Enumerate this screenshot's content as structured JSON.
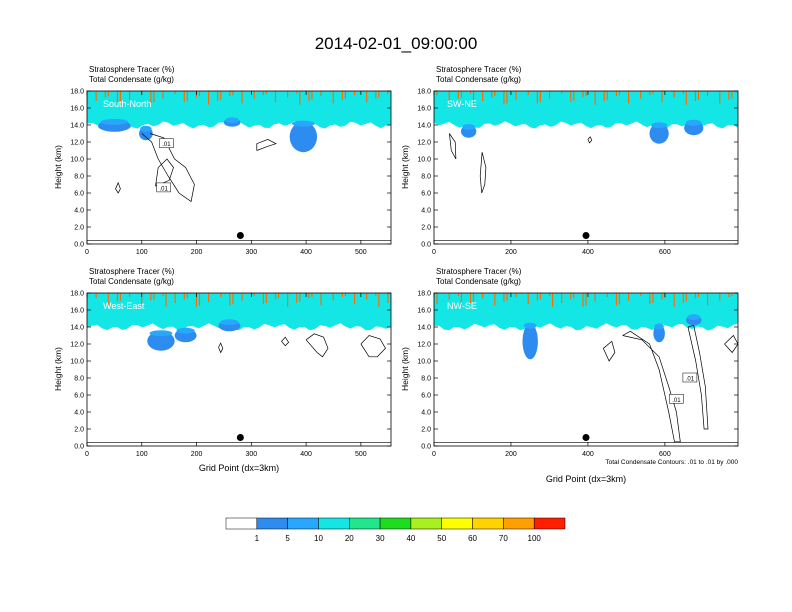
{
  "title": "2014-02-01_09:00:00",
  "panel_header": {
    "line1": "Stratosphere Tracer   (%)",
    "line2": "Total Condensate   (g/kg)"
  },
  "ylabel": "Height (km)",
  "xlabel": "Grid Point (dx=3km)",
  "contour_note": "Total Condensate Contours: .01 to .01 by .000",
  "contour_label": ".01",
  "colors": {
    "bands": [
      "#ffffff",
      "#2e8cf0",
      "#28a7ff",
      "#14e6e6",
      "#20e68c",
      "#1edc1e",
      "#a8f01e",
      "#ffff00",
      "#ffd200",
      "#ffa000",
      "#ff6a00",
      "#ff1e00"
    ],
    "outline": "#000000"
  },
  "colorbar": {
    "labels": [
      "1",
      "5",
      "10",
      "20",
      "30",
      "40",
      "50",
      "60",
      "70",
      "100"
    ]
  },
  "chart_data": [
    {
      "type": "heatmap",
      "label": "South-North",
      "ylim": [
        0,
        18
      ],
      "yticks": [
        "0.0",
        "2.0",
        "4.0",
        "6.0",
        "8.0",
        "10.0",
        "12.0",
        "14.0",
        "16.0",
        "18.0"
      ],
      "xlim": [
        0,
        555
      ],
      "xticks": [
        "0",
        "100",
        "200",
        "300",
        "400",
        "500"
      ],
      "marker_x": 280,
      "blobs": [
        [
          20,
          80,
          13.2,
          14.6
        ],
        [
          95,
          120,
          12.2,
          13.8
        ],
        [
          250,
          280,
          13.8,
          14.8
        ],
        [
          370,
          420,
          10.8,
          14.4
        ]
      ],
      "contours": [
        [
          [
            100,
            13
          ],
          [
            118,
            12
          ],
          [
            130,
            10
          ],
          [
            148,
            8
          ],
          [
            168,
            6
          ],
          [
            190,
            5
          ],
          [
            196,
            7
          ],
          [
            180,
            9
          ],
          [
            160,
            10
          ],
          [
            140,
            12.5
          ],
          [
            115,
            13
          ]
        ],
        [
          [
            52,
            6.5
          ],
          [
            57,
            7.2
          ],
          [
            61,
            6.5
          ],
          [
            57,
            6
          ],
          [
            52,
            6.5
          ]
        ],
        [
          [
            125,
            6.8
          ],
          [
            150,
            7.5
          ],
          [
            158,
            9
          ],
          [
            146,
            10
          ],
          [
            130,
            9
          ],
          [
            125,
            6.8
          ]
        ],
        [
          [
            310,
            11
          ],
          [
            330,
            11.5
          ],
          [
            345,
            11.8
          ],
          [
            330,
            12.3
          ],
          [
            310,
            11.8
          ],
          [
            310,
            11
          ]
        ]
      ],
      "labels": [
        [
          145,
          11.8
        ],
        [
          140,
          6.6
        ]
      ]
    },
    {
      "type": "heatmap",
      "label": "SW-NE",
      "ylim": [
        0,
        18
      ],
      "yticks": [
        "0.0",
        "2.0",
        "4.0",
        "6.0",
        "8.0",
        "10.0",
        "12.0",
        "14.0",
        "16.0",
        "18.0"
      ],
      "xlim": [
        0,
        790
      ],
      "xticks": [
        "0",
        "200",
        "400",
        "600"
      ],
      "marker_x": 395,
      "blobs": [
        [
          70,
          110,
          12.5,
          14
        ],
        [
          560,
          610,
          11.8,
          14.2
        ],
        [
          650,
          700,
          12.8,
          14.5
        ]
      ],
      "contours": [
        [
          [
            40,
            13
          ],
          [
            55,
            12
          ],
          [
            57,
            10
          ],
          [
            45,
            11
          ],
          [
            40,
            13
          ]
        ],
        [
          [
            125,
            10.8
          ],
          [
            135,
            9
          ],
          [
            132,
            7
          ],
          [
            124,
            6
          ],
          [
            120,
            8
          ],
          [
            125,
            10.8
          ]
        ],
        [
          [
            400,
            12.3
          ],
          [
            406,
            12.6
          ],
          [
            410,
            12.2
          ],
          [
            404,
            11.9
          ],
          [
            400,
            12.3
          ]
        ]
      ],
      "labels": []
    },
    {
      "type": "heatmap",
      "label": "West-East",
      "ylim": [
        0,
        18
      ],
      "yticks": [
        "0.0",
        "2.0",
        "4.0",
        "6.0",
        "8.0",
        "10.0",
        "12.0",
        "14.0",
        "16.0",
        "18.0"
      ],
      "xlim": [
        0,
        555
      ],
      "xticks": [
        "0",
        "100",
        "200",
        "300",
        "400",
        "500"
      ],
      "marker_x": 280,
      "blobs": [
        [
          110,
          160,
          11.2,
          13.5
        ],
        [
          160,
          200,
          12.2,
          13.8
        ],
        [
          240,
          280,
          13.5,
          14.8
        ]
      ],
      "contours": [
        [
          [
            400,
            12.5
          ],
          [
            420,
            11
          ],
          [
            430,
            10.5
          ],
          [
            440,
            11.5
          ],
          [
            432,
            12.8
          ],
          [
            415,
            13.2
          ],
          [
            400,
            12.5
          ]
        ],
        [
          [
            500,
            12
          ],
          [
            515,
            10.5
          ],
          [
            530,
            10.5
          ],
          [
            545,
            11.5
          ],
          [
            535,
            12.6
          ],
          [
            515,
            13
          ],
          [
            500,
            12
          ]
        ],
        [
          [
            240,
            11.6
          ],
          [
            244,
            12.1
          ],
          [
            248,
            11.5
          ],
          [
            244,
            11
          ],
          [
            240,
            11.6
          ]
        ],
        [
          [
            355,
            12.3
          ],
          [
            362,
            12.8
          ],
          [
            368,
            12.2
          ],
          [
            362,
            11.8
          ],
          [
            355,
            12.3
          ]
        ]
      ],
      "labels": []
    },
    {
      "type": "heatmap",
      "label": "NW-SE",
      "ylim": [
        0,
        18
      ],
      "yticks": [
        "0.0",
        "2.0",
        "4.0",
        "6.0",
        "8.0",
        "10.0",
        "12.0",
        "14.0",
        "16.0",
        "18.0"
      ],
      "xlim": [
        0,
        790
      ],
      "xticks": [
        "0",
        "200",
        "400",
        "600"
      ],
      "marker_x": 395,
      "blobs": [
        [
          230,
          270,
          10.2,
          14.4
        ],
        [
          570,
          600,
          12.2,
          14.3
        ],
        [
          655,
          695,
          14.2,
          15.4
        ]
      ],
      "contours": [
        [
          [
            490,
            13
          ],
          [
            540,
            12.5
          ],
          [
            585,
            10.5
          ],
          [
            610,
            7
          ],
          [
            630,
            4
          ],
          [
            640,
            0.5
          ],
          [
            625,
            0.5
          ],
          [
            610,
            4
          ],
          [
            585,
            9
          ],
          [
            560,
            12
          ],
          [
            510,
            13.5
          ],
          [
            490,
            13
          ]
        ],
        [
          [
            660,
            14
          ],
          [
            680,
            10
          ],
          [
            695,
            6
          ],
          [
            702,
            2
          ],
          [
            712,
            2
          ],
          [
            705,
            7
          ],
          [
            690,
            11
          ],
          [
            675,
            14.2
          ],
          [
            660,
            14
          ]
        ],
        [
          [
            440,
            11.5
          ],
          [
            462,
            12.3
          ],
          [
            470,
            11
          ],
          [
            455,
            10
          ],
          [
            440,
            11.5
          ]
        ],
        [
          [
            755,
            12
          ],
          [
            775,
            11
          ],
          [
            790,
            12
          ],
          [
            778,
            13
          ],
          [
            755,
            12
          ]
        ]
      ],
      "labels": [
        [
          665,
          8
        ],
        [
          630,
          5.5
        ]
      ]
    }
  ]
}
